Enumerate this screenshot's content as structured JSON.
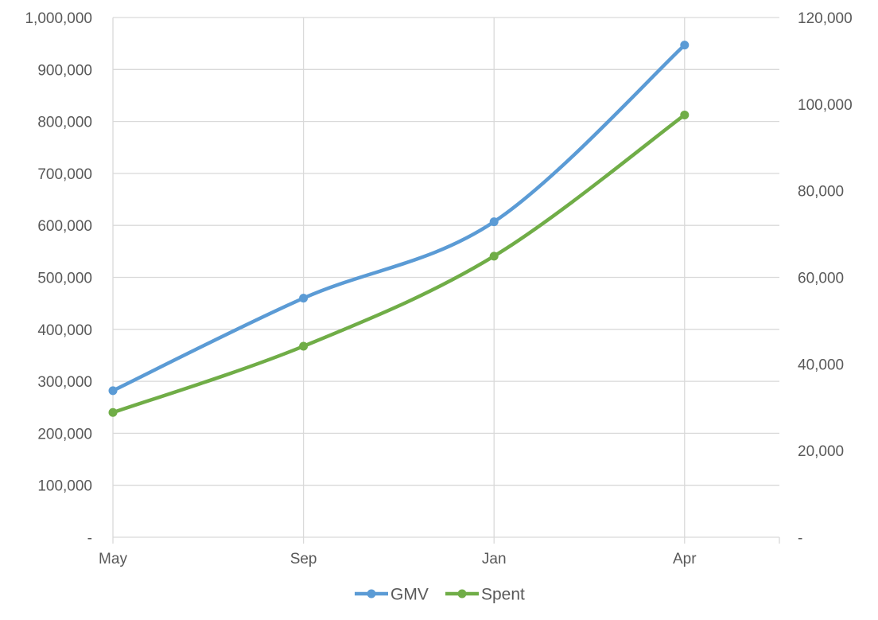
{
  "chart_data": {
    "type": "line",
    "smooth": true,
    "categories": [
      "May",
      "Sep",
      "Jan",
      "Apr"
    ],
    "series": [
      {
        "name": "GMV",
        "axis": "left",
        "color": "#5b9bd5",
        "values": [
          282000,
          460000,
          607000,
          947000
        ]
      },
      {
        "name": "Spent",
        "axis": "right",
        "color": "#70ad47",
        "values": [
          28800,
          44100,
          64900,
          97500
        ]
      }
    ],
    "y_left": {
      "min": 0,
      "max": 1000000,
      "step": 100000,
      "tick_labels": [
        "-",
        "100,000",
        "200,000",
        "300,000",
        "400,000",
        "500,000",
        "600,000",
        "700,000",
        "800,000",
        "900,000",
        "1,000,000"
      ]
    },
    "y_right": {
      "min": 0,
      "max": 120000,
      "step": 20000,
      "tick_labels": [
        "-",
        "20,000",
        "40,000",
        "60,000",
        "80,000",
        "100,000",
        "120,000"
      ]
    },
    "grid": true,
    "legend": {
      "position": "bottom",
      "entries": [
        "GMV",
        "Spent"
      ]
    }
  }
}
